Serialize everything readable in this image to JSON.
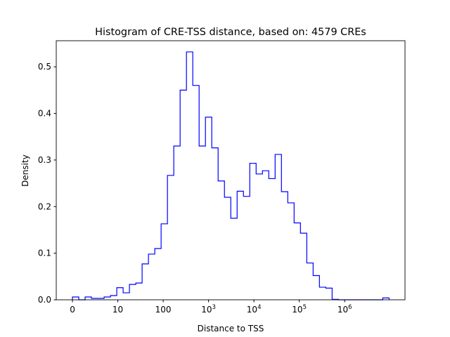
{
  "chart_data": {
    "type": "bar",
    "histtype": "step",
    "title": "Histogram of CRE-TSS distance, based on: 4579 CREs",
    "xlabel": "Distance to TSS",
    "ylabel": "Density",
    "xscale": "log10(distance+1)",
    "xlim": [
      -0.357,
      7.33
    ],
    "ylim": [
      0,
      0.556
    ],
    "bin_range": [
      0,
      6.98
    ],
    "bins": 50,
    "values": [
      0.006,
      0,
      0.006,
      0.003,
      0.003,
      0.006,
      0.009,
      0.026,
      0.015,
      0.033,
      0.036,
      0.077,
      0.098,
      0.11,
      0.163,
      0.267,
      0.33,
      0.45,
      0.532,
      0.46,
      0.33,
      0.392,
      0.326,
      0.255,
      0.22,
      0.175,
      0.233,
      0.222,
      0.293,
      0.27,
      0.277,
      0.26,
      0.312,
      0.232,
      0.208,
      0.165,
      0.143,
      0.079,
      0.052,
      0.027,
      0.025,
      0.001,
      0,
      0,
      0,
      0,
      0,
      0,
      0,
      0.004
    ],
    "xticks": [
      {
        "v": 0,
        "base": "0",
        "exp": ""
      },
      {
        "v": 1,
        "base": "10",
        "exp": ""
      },
      {
        "v": 2,
        "base": "100",
        "exp": ""
      },
      {
        "v": 3,
        "base": "10",
        "exp": "3"
      },
      {
        "v": 4,
        "base": "10",
        "exp": "4"
      },
      {
        "v": 5,
        "base": "10",
        "exp": "5"
      },
      {
        "v": 6,
        "base": "10",
        "exp": "6"
      }
    ],
    "yticks": [
      {
        "v": 0,
        "label": "0.0"
      },
      {
        "v": 0.1,
        "label": "0.1"
      },
      {
        "v": 0.2,
        "label": "0.2"
      },
      {
        "v": 0.3,
        "label": "0.3"
      },
      {
        "v": 0.4,
        "label": "0.4"
      },
      {
        "v": 0.5,
        "label": "0.5"
      }
    ],
    "color": "#0000ff"
  }
}
